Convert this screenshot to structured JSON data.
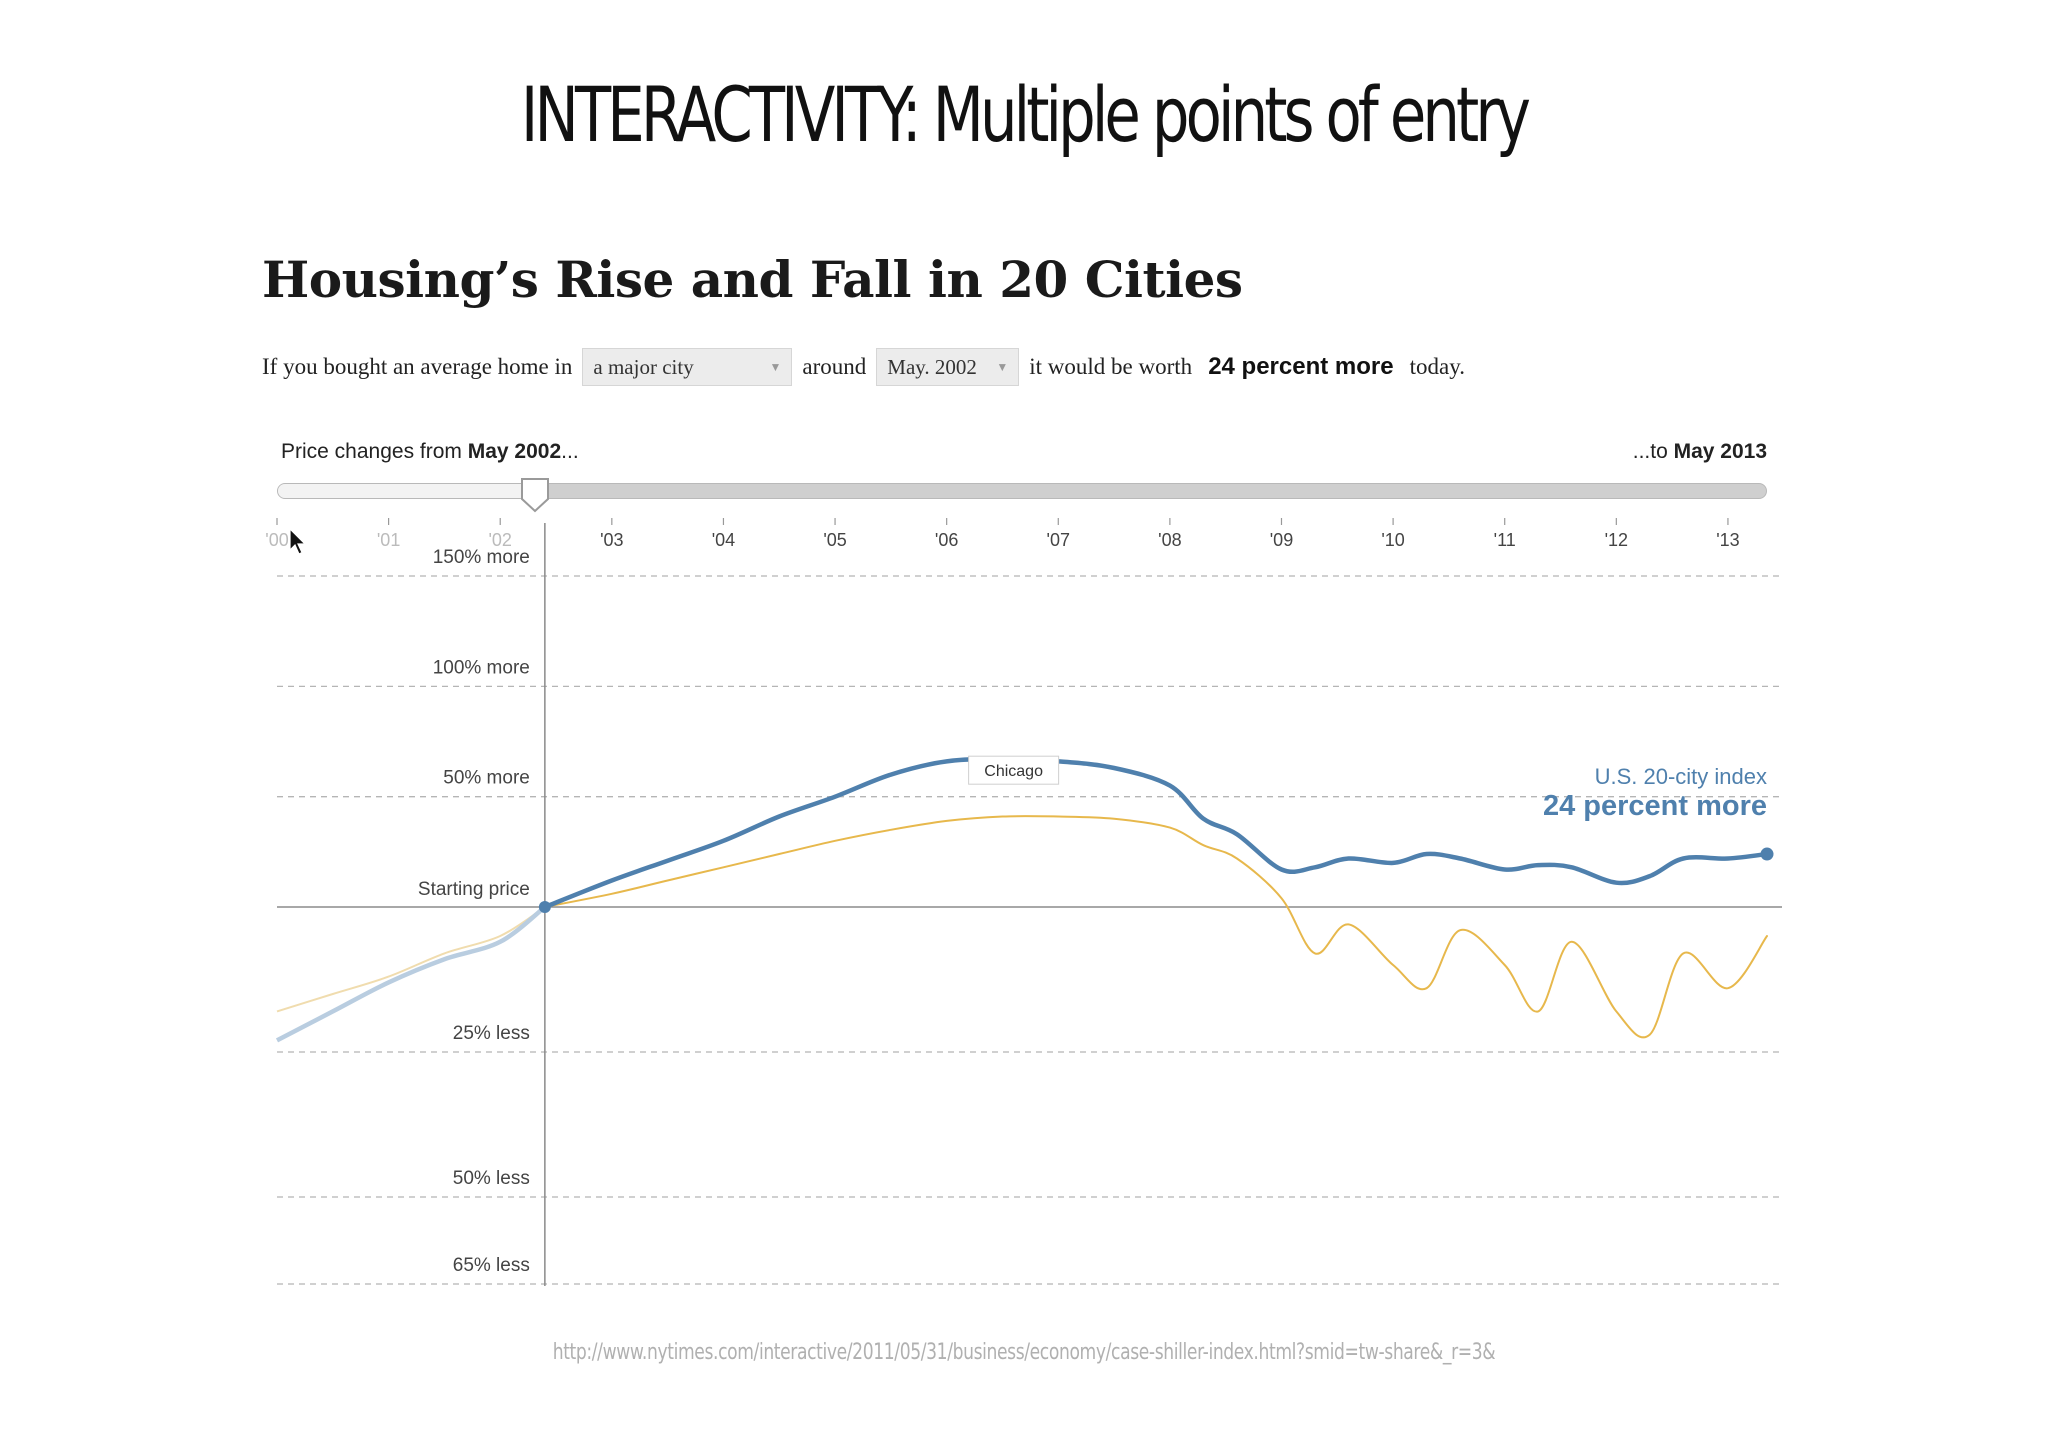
{
  "slide": {
    "title": "INTERACTIVITY: Multiple points of entry",
    "source_url": "http://www.nytimes.com/interactive/2011/05/31/business/economy/case-shiller-index.html?smid=tw-share&_r=3&"
  },
  "graphic": {
    "title": "Housing’s Rise and Fall in 20 Cities",
    "sentence": {
      "prefix": "If you bought an average home in",
      "city_select": "a major city",
      "middle": "around",
      "date_select": "May. 2002",
      "worth": "it would be worth",
      "result": "24 percent more",
      "suffix": "today."
    },
    "slider": {
      "left_prefix": "Price changes from ",
      "left_date": "May 2002",
      "left_suffix": "...",
      "right_prefix": "...to ",
      "right_date": "May 2013",
      "start_year": 2002.4
    },
    "cursor_icon": "arrow-cursor-icon"
  },
  "chart_data": {
    "type": "line",
    "x_ticks": [
      "'00",
      "'01",
      "'02",
      "'03",
      "'04",
      "'05",
      "'06",
      "'07",
      "'08",
      "'09",
      "'10",
      "'11",
      "'12",
      "'13"
    ],
    "x_tick_values": [
      2000,
      2001,
      2002,
      2003,
      2004,
      2005,
      2006,
      2007,
      2008,
      2009,
      2010,
      2011,
      2012,
      2013
    ],
    "xlim": [
      2000,
      2013.35
    ],
    "ylim": [
      -65,
      155
    ],
    "y_gridlines": [
      {
        "value": 150,
        "label": "150% more"
      },
      {
        "value": 100,
        "label": "100% more"
      },
      {
        "value": 50,
        "label": "50% more"
      },
      {
        "value": 0,
        "label": "Starting price"
      },
      {
        "value": -25,
        "label": "25% less"
      },
      {
        "value": -50,
        "label": "50% less"
      },
      {
        "value": -65,
        "label": "65% less"
      }
    ],
    "colors": {
      "index": "#4f80ad",
      "highlight": "#e7b84c",
      "other": "#d9d5dc",
      "pre_start": "#b9cde0",
      "axis": "#8a8a8a"
    },
    "series": [
      {
        "name": "Chicago",
        "role": "highlight",
        "x": [
          2000,
          2000.5,
          2001,
          2001.5,
          2002,
          2002.4,
          2003,
          2003.5,
          2004,
          2004.5,
          2005,
          2005.5,
          2006,
          2006.5,
          2007,
          2007.5,
          2008,
          2008.3,
          2008.6,
          2009,
          2009.3,
          2009.6,
          2010,
          2010.3,
          2010.6,
          2011,
          2011.3,
          2011.6,
          2012,
          2012.3,
          2012.6,
          2013,
          2013.35
        ],
        "y": [
          -18,
          -15,
          -12,
          -8,
          -5,
          0,
          6,
          12,
          18,
          24,
          30,
          35,
          39,
          41,
          41,
          40,
          36,
          28,
          22,
          4,
          -8,
          -3,
          -10,
          -14,
          -4,
          -10,
          -18,
          -6,
          -18,
          -22,
          -8,
          -14,
          -5
        ]
      },
      {
        "name": "U.S. 20-city index",
        "role": "index",
        "x": [
          2000,
          2000.5,
          2001,
          2001.5,
          2002,
          2002.4,
          2003,
          2003.5,
          2004,
          2004.5,
          2005,
          2005.5,
          2006,
          2006.5,
          2007,
          2007.5,
          2008,
          2008.3,
          2008.6,
          2009,
          2009.3,
          2009.6,
          2010,
          2010.3,
          2010.6,
          2011,
          2011.3,
          2011.6,
          2012,
          2012.3,
          2012.6,
          2013,
          2013.35
        ],
        "y": [
          -23,
          -18,
          -13,
          -9,
          -6,
          0,
          12,
          21,
          30,
          41,
          50,
          60,
          66,
          67,
          66,
          63,
          55,
          40,
          33,
          17,
          18,
          22,
          20,
          24,
          22,
          17,
          19,
          18,
          11,
          14,
          22,
          22,
          24
        ]
      }
    ],
    "annotations": [
      {
        "text": "Chicago",
        "x": 2006.6,
        "y": 62
      },
      {
        "text": "U.S. 20-city index",
        "x": 2013.35,
        "y": 50
      },
      {
        "text": "24 percent more",
        "x": 2013.35,
        "y": 40
      }
    ]
  }
}
